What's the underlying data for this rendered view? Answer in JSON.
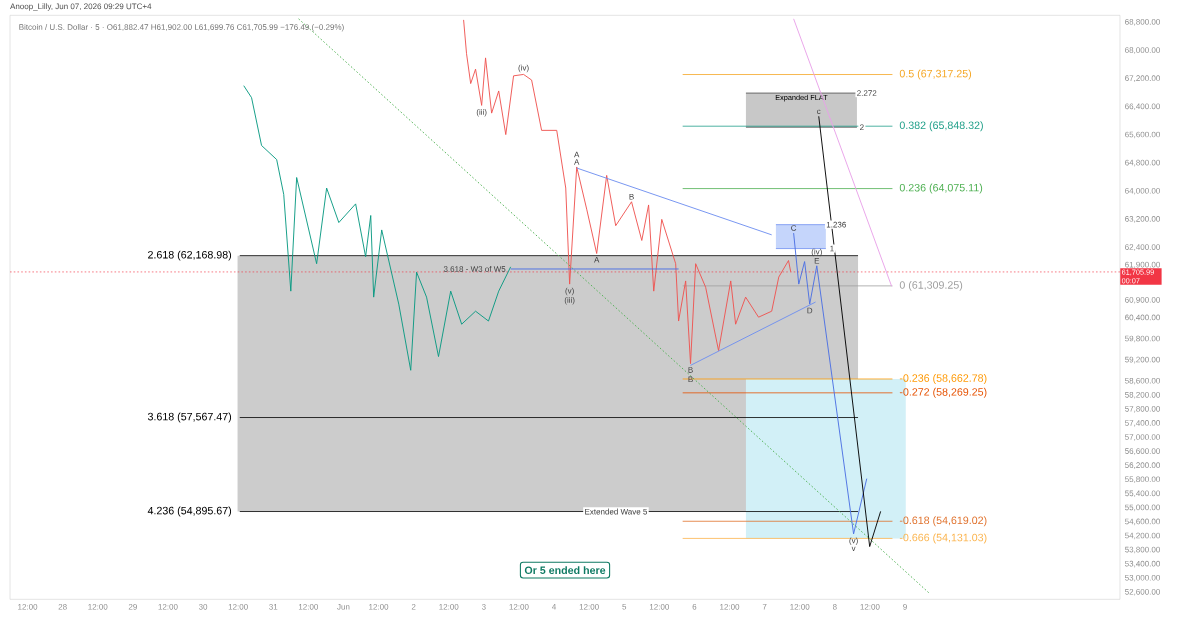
{
  "chart_data": {
    "type": "line",
    "title": "Anoop_Lilly, Jun 07, 2026 09:29 UTC+4",
    "subtitle": "Bitcoin / U.S. Dollar · 5 · O61,882.47 H61,902.00 L61,699.76 C61,705.99 −176.49 (−0.29%)",
    "xlim": [
      "2026-05-27T06:00",
      "2026-06-12T01:30"
    ],
    "ylim": [
      52400,
      69000
    ],
    "xticks": [
      {
        "value": "2026-05-27T12:00",
        "label": "12:00"
      },
      {
        "value": "2026-05-28T00:00",
        "label": "28"
      },
      {
        "value": "2026-05-28T12:00",
        "label": "12:00"
      },
      {
        "value": "2026-05-29T00:00",
        "label": "29"
      },
      {
        "value": "2026-05-29T12:00",
        "label": "12:00"
      },
      {
        "value": "2026-05-30T00:00",
        "label": "30"
      },
      {
        "value": "2026-05-30T12:00",
        "label": "12:00"
      },
      {
        "value": "2026-05-31T00:00",
        "label": "31"
      },
      {
        "value": "2026-05-31T12:00",
        "label": "12:00"
      },
      {
        "value": "2026-06-01T00:00",
        "label": "Jun"
      },
      {
        "value": "2026-06-01T12:00",
        "label": "12:00"
      },
      {
        "value": "2026-06-02T00:00",
        "label": "2"
      },
      {
        "value": "2026-06-02T12:00",
        "label": "12:00"
      },
      {
        "value": "2026-06-03T00:00",
        "label": "3"
      },
      {
        "value": "2026-06-03T12:00",
        "label": "12:00"
      },
      {
        "value": "2026-06-04T00:00",
        "label": "4"
      },
      {
        "value": "2026-06-04T12:00",
        "label": "12:00"
      },
      {
        "value": "2026-06-05T00:00",
        "label": "5"
      },
      {
        "value": "2026-06-05T12:00",
        "label": "12:00"
      },
      {
        "value": "2026-06-06T00:00",
        "label": "6"
      },
      {
        "value": "2026-06-06T12:00",
        "label": "12:00"
      },
      {
        "value": "2026-06-07T00:00",
        "label": "7"
      },
      {
        "value": "2026-06-07T12:00",
        "label": "12:00"
      },
      {
        "value": "2026-06-08T00:00",
        "label": "8"
      },
      {
        "value": "2026-06-08T12:00",
        "label": "12:00"
      },
      {
        "value": "2026-06-09T00:00",
        "label": "9"
      }
    ],
    "yticks": [
      {
        "value": 52600,
        "label": "52,600.00"
      },
      {
        "value": 53000,
        "label": "53,000.00"
      },
      {
        "value": 53400,
        "label": "53,400.00"
      },
      {
        "value": 53800,
        "label": "53,800.00"
      },
      {
        "value": 54200,
        "label": "54,200.00"
      },
      {
        "value": 54600,
        "label": "54,600.00"
      },
      {
        "value": 55000,
        "label": "55,000.00"
      },
      {
        "value": 55400,
        "label": "55,400.00"
      },
      {
        "value": 55800,
        "label": "55,800.00"
      },
      {
        "value": 56200,
        "label": "56,200.00"
      },
      {
        "value": 56600,
        "label": "56,600.00"
      },
      {
        "value": 57000,
        "label": "57,000.00"
      },
      {
        "value": 57400,
        "label": "57,400.00"
      },
      {
        "value": 57800,
        "label": "57,800.00"
      },
      {
        "value": 58200,
        "label": "58,200.00"
      },
      {
        "value": 58600,
        "label": "58,600.00"
      },
      {
        "value": 59200,
        "label": "59,200.00"
      },
      {
        "value": 59800,
        "label": "59,800.00"
      },
      {
        "value": 60400,
        "label": "60,400.00"
      },
      {
        "value": 60900,
        "label": "60,900.00"
      },
      {
        "value": 61900,
        "label": "61,900.00"
      },
      {
        "value": 62400,
        "label": "62,400.00"
      },
      {
        "value": 63200,
        "label": "63,200.00"
      },
      {
        "value": 64000,
        "label": "64,000.00"
      },
      {
        "value": 64800,
        "label": "64,800.00"
      },
      {
        "value": 65600,
        "label": "65,600.00"
      },
      {
        "value": 66400,
        "label": "66,400.00"
      },
      {
        "value": 67200,
        "label": "67,200.00"
      },
      {
        "value": 68000,
        "label": "68,000.00"
      },
      {
        "value": 68800,
        "label": "68,800.00"
      }
    ],
    "bands": [
      {
        "axis": "y",
        "from": 54895.67,
        "to": 62168.98,
        "color": "#cccccc"
      },
      {
        "axis": "y",
        "from": 54131.03,
        "to": 58662.78,
        "color": "#d2f0f7"
      },
      {
        "axis": "y",
        "from": 65820,
        "to": 66790,
        "color": "#c8c8c8",
        "label": "Expanded FLAT"
      },
      {
        "axis": "y",
        "from": 62370,
        "to": 63050,
        "color": "#c5d5fb"
      }
    ],
    "series": [
      {
        "color": "#ef5350",
        "x": [
          "2026-06-02T17:05",
          "2026-06-02T18:05",
          "2026-06-02T19:30",
          "2026-06-02T21:10",
          "2026-06-02T23:15",
          "2026-06-03T00:35",
          "2026-06-03T02:40",
          "2026-06-03T05:05",
          "2026-06-03T07:30",
          "2026-06-03T10:10",
          "2026-06-03T13:35",
          "2026-06-03T16:20",
          "2026-06-03T19:45",
          "2026-06-04T00:55",
          "2026-06-04T04:00",
          "2026-06-04T05:20",
          "2026-06-04T07:45",
          "2026-06-04T11:10",
          "2026-06-04T14:35",
          "2026-06-04T18:00",
          "2026-06-04T21:05",
          "2026-06-05T02:30",
          "2026-06-05T06:00",
          "2026-06-05T08:20",
          "2026-06-05T10:05",
          "2026-06-05T12:50",
          "2026-06-05T17:35",
          "2026-06-05T18:35",
          "2026-06-05T21:00",
          "2026-06-05T22:40",
          "2026-06-06T00:25",
          "2026-06-06T03:50",
          "2026-06-06T08:15",
          "2026-06-06T12:25",
          "2026-06-06T14:05",
          "2026-06-06T17:30",
          "2026-06-06T21:55",
          "2026-06-07T02:25",
          "2026-06-07T04:50",
          "2026-06-07T08:10",
          "2026-06-07T08:55"
        ],
        "values": [
          68870,
          67910,
          67060,
          67470,
          66440,
          67790,
          66220,
          66850,
          65610,
          67280,
          67320,
          67160,
          65730,
          65730,
          64090,
          61360,
          64690,
          63490,
          62230,
          64450,
          63020,
          63700,
          62600,
          63610,
          61160,
          63200,
          61940,
          60310,
          61450,
          59100,
          61940,
          61270,
          59470,
          61450,
          60220,
          60990,
          60420,
          60590,
          61560,
          62030,
          61710
        ]
      },
      {
        "color": "#089981",
        "x": [
          "2026-05-30T13:55",
          "2026-05-30T16:35",
          "2026-05-30T20:00",
          "2026-05-31T01:10",
          "2026-05-31T03:35",
          "2026-05-31T06:00",
          "2026-05-31T08:00",
          "2026-05-31T14:50",
          "2026-05-31T18:15",
          "2026-05-31T22:25",
          "2026-06-01T04:10",
          "2026-06-01T07:35",
          "2026-06-01T09:20",
          "2026-06-01T10:20",
          "2026-06-01T13:05",
          "2026-06-01T18:55",
          "2026-06-01T23:00",
          "2026-06-02T01:00",
          "2026-06-02T04:25",
          "2026-06-02T08:30",
          "2026-06-02T12:40",
          "2026-06-02T16:25",
          "2026-06-02T21:10",
          "2026-06-03T01:35",
          "2026-06-03T05:05",
          "2026-06-03T09:10"
        ],
        "values": [
          67000,
          66660,
          65300,
          64900,
          63910,
          61160,
          64390,
          61940,
          64090,
          63110,
          63640,
          62140,
          63310,
          60990,
          62900,
          60790,
          58910,
          61700,
          60990,
          59300,
          61160,
          60220,
          60590,
          60310,
          61160,
          61850
        ]
      },
      {
        "color": "#4a6fe3",
        "x": [
          "2026-06-07T09:55",
          "2026-06-07T11:40",
          "2026-06-07T13:40",
          "2026-06-07T15:25",
          "2026-06-07T17:50",
          "2026-06-08T06:25",
          "2026-06-08T10:55"
        ],
        "values": [
          62810,
          61360,
          62000,
          60790,
          61880,
          54260,
          55830
        ]
      },
      {
        "color": "#000000",
        "x": [
          "2026-06-07T18:30",
          "2026-06-08T11:55",
          "2026-06-08T15:40"
        ],
        "values": [
          66130,
          53900,
          54900
        ]
      },
      {
        "color": "#4caf50",
        "line_style": "dotted",
        "x": [
          "2026-05-31T08:40",
          "2026-06-09T08:05"
        ],
        "values": [
          68900,
          52590
        ]
      },
      {
        "color": "#e8a0e8",
        "x": [
          "2026-06-07T09:55",
          "2026-06-08T19:25"
        ],
        "values": [
          68900,
          61300
        ]
      },
      {
        "color": "#6f8ff0",
        "x": [
          "2026-06-04T07:45",
          "2026-06-07T02:25"
        ],
        "values": [
          64660,
          62760
        ]
      },
      {
        "color": "#6f8ff0",
        "x": [
          "2026-06-05T22:40",
          "2026-06-07T17:25"
        ],
        "values": [
          59050,
          60850
        ]
      },
      {
        "color": "#4a6fe3",
        "x": [
          "2026-06-03T09:10",
          "2026-06-05T18:35"
        ],
        "values": [
          61790,
          61790
        ]
      }
    ],
    "ref_lines": [
      {
        "axis": "y",
        "value": 62168.98,
        "label": "2.618 (62,168.98)"
      },
      {
        "axis": "y",
        "value": 57567.47,
        "label": "3.618 (57,567.47)"
      },
      {
        "axis": "y",
        "value": 54895.67,
        "label": "4.236 (54,895.67)"
      },
      {
        "axis": "y",
        "value": 67317.25,
        "label": "0.5 (67,317.25)",
        "color": "#f5a623"
      },
      {
        "axis": "y",
        "value": 65848.32,
        "label": "0.382 (65,848.32)",
        "color": "#22a08a"
      },
      {
        "axis": "y",
        "value": 64075.11,
        "label": "0.236 (64,075.11)",
        "color": "#4caf50"
      },
      {
        "axis": "y",
        "value": 61309.25,
        "label": "0 (61,309.25)",
        "color": "#9e9e9e"
      },
      {
        "axis": "y",
        "value": 58662.78,
        "label": "-0.236 (58,662.78)",
        "color": "#ff9800"
      },
      {
        "axis": "y",
        "value": 58269.25,
        "label": "-0.272 (58,269.25)",
        "color": "#e65100"
      },
      {
        "axis": "y",
        "value": 54619.02,
        "label": "-0.618 (54,619.02)",
        "color": "#e0702a"
      },
      {
        "axis": "y",
        "value": 54131.03,
        "label": "-0.666 (54,131.03)",
        "color": "#fbb34c"
      },
      {
        "axis": "y",
        "value": 61705.99,
        "label": "61,705.99 00:07",
        "color": "#f23645",
        "line_style": "dotted"
      }
    ],
    "annotations": [
      {
        "text": "(iii)",
        "x": "2026-06-02T23:15",
        "y": 66440
      },
      {
        "text": "(iv)",
        "x": "2026-06-03T13:35",
        "y": 67320
      },
      {
        "text": "(v)",
        "x": "2026-06-04T05:20",
        "y": 61360
      },
      {
        "text": "(iii)",
        "x": "2026-06-04T05:20",
        "y": 61360
      },
      {
        "text": "A",
        "x": "2026-06-04T07:45",
        "y": 64690
      },
      {
        "text": "A",
        "x": "2026-06-04T07:45",
        "y": 64690
      },
      {
        "text": "A",
        "x": "2026-06-04T14:35",
        "y": 62230
      },
      {
        "text": "B",
        "x": "2026-06-05T02:30",
        "y": 63700
      },
      {
        "text": "B",
        "x": "2026-06-05T22:40",
        "y": 59100
      },
      {
        "text": "B",
        "x": "2026-06-05T22:40",
        "y": 59100
      },
      {
        "text": "C",
        "x": "2026-06-07T09:55",
        "y": 62810
      },
      {
        "text": "E",
        "x": "2026-06-07T17:50",
        "y": 61880
      },
      {
        "text": "(iv)",
        "x": "2026-06-07T17:50",
        "y": 61880
      },
      {
        "text": "D",
        "x": "2026-06-07T15:25",
        "y": 60790
      },
      {
        "text": "(v)",
        "x": "2026-06-08T06:25",
        "y": 54260
      },
      {
        "text": "v",
        "x": "2026-06-08T06:25",
        "y": 54260
      },
      {
        "text": "c",
        "x": "2026-06-07T18:30",
        "y": 66130
      },
      {
        "text": "3.618 - W3 of W5",
        "x": "2026-06-03T09:10",
        "y": 61790
      },
      {
        "text": "Extended Wave 5",
        "x": "2026-06-04T21:10",
        "y": 54895.67
      },
      {
        "text": "2.272",
        "x": "2026-06-08T10:55",
        "y": 66790
      },
      {
        "text": "2",
        "x": "2026-06-08T09:15",
        "y": 65820
      },
      {
        "text": "1.236",
        "x": "2026-06-08T00:30",
        "y": 63050
      },
      {
        "text": "1",
        "x": "2026-06-07T23:00",
        "y": 62370
      },
      "Or 5 ended here"
    ]
  }
}
